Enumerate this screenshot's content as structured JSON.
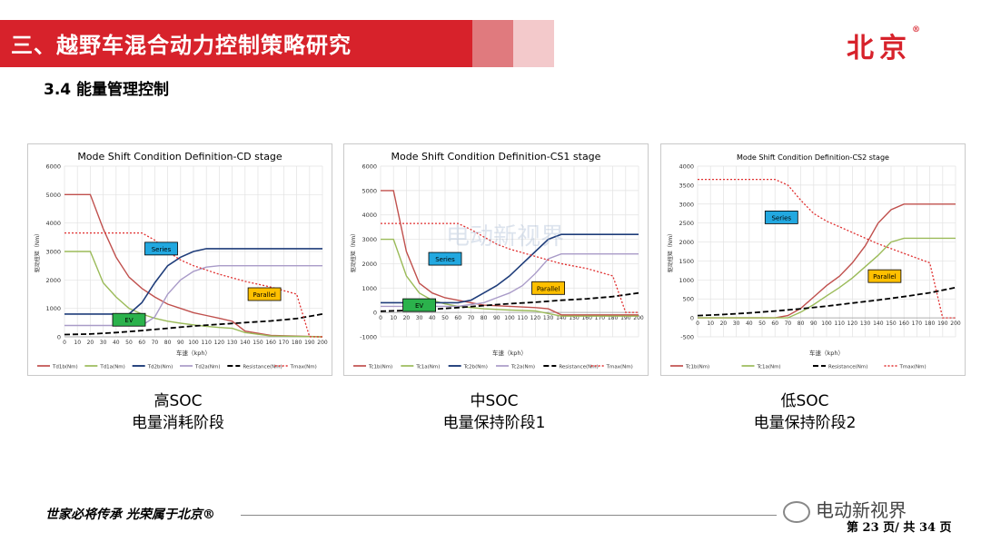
{
  "header": {
    "title": "三、越野车混合动力控制策略研究",
    "logo": "北京",
    "logo_mark": "®",
    "subtitle": "3.4 能量管理控制"
  },
  "captions": [
    {
      "line1": "高SOC",
      "line2": "电量消耗阶段"
    },
    {
      "line1": "中SOC",
      "line2": "电量保持阶段1"
    },
    {
      "line1": "低SOC",
      "line2": "电量保持阶段2"
    }
  ],
  "footer": {
    "slogan": "世家必将传承  光荣属于北京®",
    "wechat": "电动新视界",
    "page": "第 23 页/ 共 34 页"
  },
  "watermark": "电动新视界",
  "colors": {
    "red": "#c0504d",
    "green": "#9bbb59",
    "blue": "#1f3d7a",
    "purple": "#a99bc8",
    "black": "#000000",
    "dotred": "#e03030",
    "series_box": "#22a8e0",
    "parallel_box": "#ffc000",
    "ev_box": "#2bb24c"
  },
  "chart_data": [
    {
      "type": "line",
      "title": "Mode Shift Condition Definition-CD stage",
      "xlabel": "车速（kph）",
      "ylabel": "驱动扭矩（Nm）",
      "xlim": [
        0,
        200
      ],
      "ylim": [
        0,
        6000
      ],
      "xticks": [
        0,
        10,
        20,
        30,
        40,
        50,
        60,
        70,
        80,
        90,
        100,
        110,
        120,
        130,
        140,
        150,
        160,
        170,
        180,
        190,
        200
      ],
      "yticks": [
        0,
        1000,
        2000,
        3000,
        4000,
        5000,
        6000
      ],
      "annotations": [
        "Series",
        "Parallel",
        "EV"
      ],
      "series": [
        {
          "name": "Td1b(Nm)",
          "style": "red",
          "points": [
            [
              0,
              5000
            ],
            [
              20,
              5000
            ],
            [
              30,
              3800
            ],
            [
              40,
              2800
            ],
            [
              50,
              2100
            ],
            [
              60,
              1700
            ],
            [
              70,
              1400
            ],
            [
              80,
              1150
            ],
            [
              90,
              1000
            ],
            [
              100,
              850
            ],
            [
              110,
              750
            ],
            [
              120,
              650
            ],
            [
              130,
              550
            ],
            [
              140,
              200
            ],
            [
              160,
              50
            ],
            [
              200,
              0
            ]
          ]
        },
        {
          "name": "Td1a(Nm)",
          "style": "green",
          "points": [
            [
              0,
              3000
            ],
            [
              20,
              3000
            ],
            [
              30,
              1900
            ],
            [
              40,
              1400
            ],
            [
              50,
              1000
            ],
            [
              60,
              800
            ],
            [
              70,
              650
            ],
            [
              80,
              550
            ],
            [
              90,
              480
            ],
            [
              100,
              420
            ],
            [
              110,
              370
            ],
            [
              120,
              330
            ],
            [
              130,
              300
            ],
            [
              140,
              150
            ],
            [
              160,
              30
            ],
            [
              200,
              0
            ]
          ]
        },
        {
          "name": "Td2b(Nm)",
          "style": "blue",
          "points": [
            [
              0,
              800
            ],
            [
              50,
              800
            ],
            [
              60,
              1200
            ],
            [
              70,
              1900
            ],
            [
              80,
              2500
            ],
            [
              90,
              2800
            ],
            [
              100,
              3000
            ],
            [
              110,
              3100
            ],
            [
              200,
              3100
            ]
          ]
        },
        {
          "name": "Td2a(Nm)",
          "style": "purple",
          "points": [
            [
              0,
              400
            ],
            [
              60,
              400
            ],
            [
              70,
              700
            ],
            [
              80,
              1500
            ],
            [
              90,
              2000
            ],
            [
              100,
              2300
            ],
            [
              110,
              2450
            ],
            [
              120,
              2500
            ],
            [
              200,
              2500
            ]
          ]
        },
        {
          "name": "Resistance(Nm)",
          "style": "black",
          "points": [
            [
              0,
              80
            ],
            [
              20,
              100
            ],
            [
              40,
              150
            ],
            [
              60,
              220
            ],
            [
              80,
              300
            ],
            [
              100,
              380
            ],
            [
              120,
              440
            ],
            [
              140,
              500
            ],
            [
              160,
              560
            ],
            [
              180,
              640
            ],
            [
              200,
              800
            ]
          ]
        },
        {
          "name": "Tmax(Nm)",
          "style": "dotred",
          "points": [
            [
              0,
              3650
            ],
            [
              60,
              3650
            ],
            [
              70,
              3400
            ],
            [
              80,
              3000
            ],
            [
              90,
              2700
            ],
            [
              100,
              2500
            ],
            [
              110,
              2350
            ],
            [
              120,
              2200
            ],
            [
              140,
              1950
            ],
            [
              160,
              1750
            ],
            [
              180,
              1500
            ],
            [
              190,
              0
            ],
            [
              200,
              0
            ]
          ]
        }
      ]
    },
    {
      "type": "line",
      "title": "Mode Shift Condition Definition-CS1 stage",
      "xlabel": "车速（kph）",
      "ylabel": "驱动扭矩（Nm）",
      "xlim": [
        0,
        200
      ],
      "ylim": [
        -1000,
        6000
      ],
      "xticks": [
        0,
        10,
        20,
        30,
        40,
        50,
        60,
        70,
        80,
        90,
        100,
        110,
        120,
        130,
        140,
        150,
        160,
        170,
        180,
        190,
        200
      ],
      "yticks": [
        -1000,
        0,
        1000,
        2000,
        3000,
        4000,
        5000,
        6000
      ],
      "annotations": [
        "Series",
        "Parallel",
        "EV"
      ],
      "series": [
        {
          "name": "Tc1b(Nm)",
          "style": "red",
          "points": [
            [
              0,
              5000
            ],
            [
              10,
              5000
            ],
            [
              20,
              2500
            ],
            [
              30,
              1200
            ],
            [
              40,
              800
            ],
            [
              50,
              600
            ],
            [
              60,
              500
            ],
            [
              70,
              400
            ],
            [
              80,
              300
            ],
            [
              100,
              250
            ],
            [
              120,
              200
            ],
            [
              130,
              150
            ],
            [
              140,
              -100
            ],
            [
              200,
              -100
            ]
          ]
        },
        {
          "name": "Tc1a(Nm)",
          "style": "green",
          "points": [
            [
              0,
              3000
            ],
            [
              10,
              3000
            ],
            [
              20,
              1500
            ],
            [
              30,
              800
            ],
            [
              40,
              500
            ],
            [
              50,
              350
            ],
            [
              60,
              250
            ],
            [
              80,
              150
            ],
            [
              100,
              100
            ],
            [
              120,
              60
            ],
            [
              140,
              -150
            ],
            [
              200,
              -150
            ]
          ]
        },
        {
          "name": "Tc2b(Nm)",
          "style": "blue",
          "points": [
            [
              0,
              400
            ],
            [
              60,
              400
            ],
            [
              70,
              500
            ],
            [
              80,
              800
            ],
            [
              90,
              1100
            ],
            [
              100,
              1500
            ],
            [
              110,
              2000
            ],
            [
              120,
              2500
            ],
            [
              130,
              3000
            ],
            [
              140,
              3200
            ],
            [
              200,
              3200
            ]
          ]
        },
        {
          "name": "Tc2a(Nm)",
          "style": "purple",
          "points": [
            [
              0,
              250
            ],
            [
              60,
              250
            ],
            [
              80,
              400
            ],
            [
              90,
              600
            ],
            [
              100,
              800
            ],
            [
              110,
              1100
            ],
            [
              120,
              1600
            ],
            [
              130,
              2200
            ],
            [
              140,
              2400
            ],
            [
              200,
              2400
            ]
          ]
        },
        {
          "name": "Resistance(Nm)",
          "style": "black",
          "points": [
            [
              0,
              50
            ],
            [
              20,
              80
            ],
            [
              40,
              130
            ],
            [
              60,
              200
            ],
            [
              80,
              280
            ],
            [
              100,
              360
            ],
            [
              120,
              420
            ],
            [
              140,
              500
            ],
            [
              160,
              560
            ],
            [
              180,
              650
            ],
            [
              200,
              800
            ]
          ]
        },
        {
          "name": "Tmax(Nm)",
          "style": "dotred",
          "points": [
            [
              0,
              3650
            ],
            [
              60,
              3650
            ],
            [
              70,
              3400
            ],
            [
              80,
              3100
            ],
            [
              90,
              2800
            ],
            [
              100,
              2600
            ],
            [
              120,
              2300
            ],
            [
              140,
              2000
            ],
            [
              160,
              1800
            ],
            [
              180,
              1500
            ],
            [
              190,
              0
            ],
            [
              200,
              0
            ]
          ]
        }
      ]
    },
    {
      "type": "line",
      "title": "Mode Shift Condition Definition-CS2 stage",
      "xlabel": "车速（kph）",
      "ylabel": "驱动扭矩（Nm）",
      "xlim": [
        0,
        200
      ],
      "ylim": [
        -500,
        4000
      ],
      "xticks": [
        0,
        10,
        20,
        30,
        40,
        50,
        60,
        70,
        80,
        90,
        100,
        110,
        120,
        130,
        140,
        150,
        160,
        170,
        180,
        190,
        200
      ],
      "yticks": [
        -500,
        0,
        500,
        1000,
        1500,
        2000,
        2500,
        3000,
        3500,
        4000
      ],
      "annotations": [
        "Series",
        "Parallel"
      ],
      "series": [
        {
          "name": "Tc1b(Nm)",
          "style": "red",
          "points": [
            [
              0,
              0
            ],
            [
              60,
              0
            ],
            [
              70,
              60
            ],
            [
              80,
              250
            ],
            [
              90,
              550
            ],
            [
              100,
              850
            ],
            [
              110,
              1100
            ],
            [
              120,
              1450
            ],
            [
              130,
              1900
            ],
            [
              140,
              2500
            ],
            [
              150,
              2850
            ],
            [
              160,
              3000
            ],
            [
              200,
              3000
            ]
          ]
        },
        {
          "name": "Tc1a(Nm)",
          "style": "green",
          "points": [
            [
              0,
              0
            ],
            [
              70,
              0
            ],
            [
              80,
              150
            ],
            [
              90,
              350
            ],
            [
              100,
              580
            ],
            [
              110,
              800
            ],
            [
              120,
              1050
            ],
            [
              130,
              1350
            ],
            [
              140,
              1650
            ],
            [
              150,
              2000
            ],
            [
              160,
              2100
            ],
            [
              200,
              2100
            ]
          ]
        },
        {
          "name": "Resistance(Nm)",
          "style": "black",
          "points": [
            [
              0,
              60
            ],
            [
              20,
              90
            ],
            [
              40,
              130
            ],
            [
              60,
              180
            ],
            [
              80,
              240
            ],
            [
              100,
              310
            ],
            [
              120,
              390
            ],
            [
              140,
              470
            ],
            [
              160,
              560
            ],
            [
              180,
              660
            ],
            [
              200,
              800
            ]
          ]
        },
        {
          "name": "Tmax(Nm)",
          "style": "dotred",
          "points": [
            [
              0,
              3650
            ],
            [
              60,
              3650
            ],
            [
              70,
              3500
            ],
            [
              80,
              3100
            ],
            [
              90,
              2750
            ],
            [
              100,
              2550
            ],
            [
              110,
              2400
            ],
            [
              120,
              2250
            ],
            [
              140,
              1950
            ],
            [
              160,
              1700
            ],
            [
              180,
              1450
            ],
            [
              190,
              0
            ],
            [
              200,
              0
            ]
          ]
        }
      ]
    }
  ]
}
